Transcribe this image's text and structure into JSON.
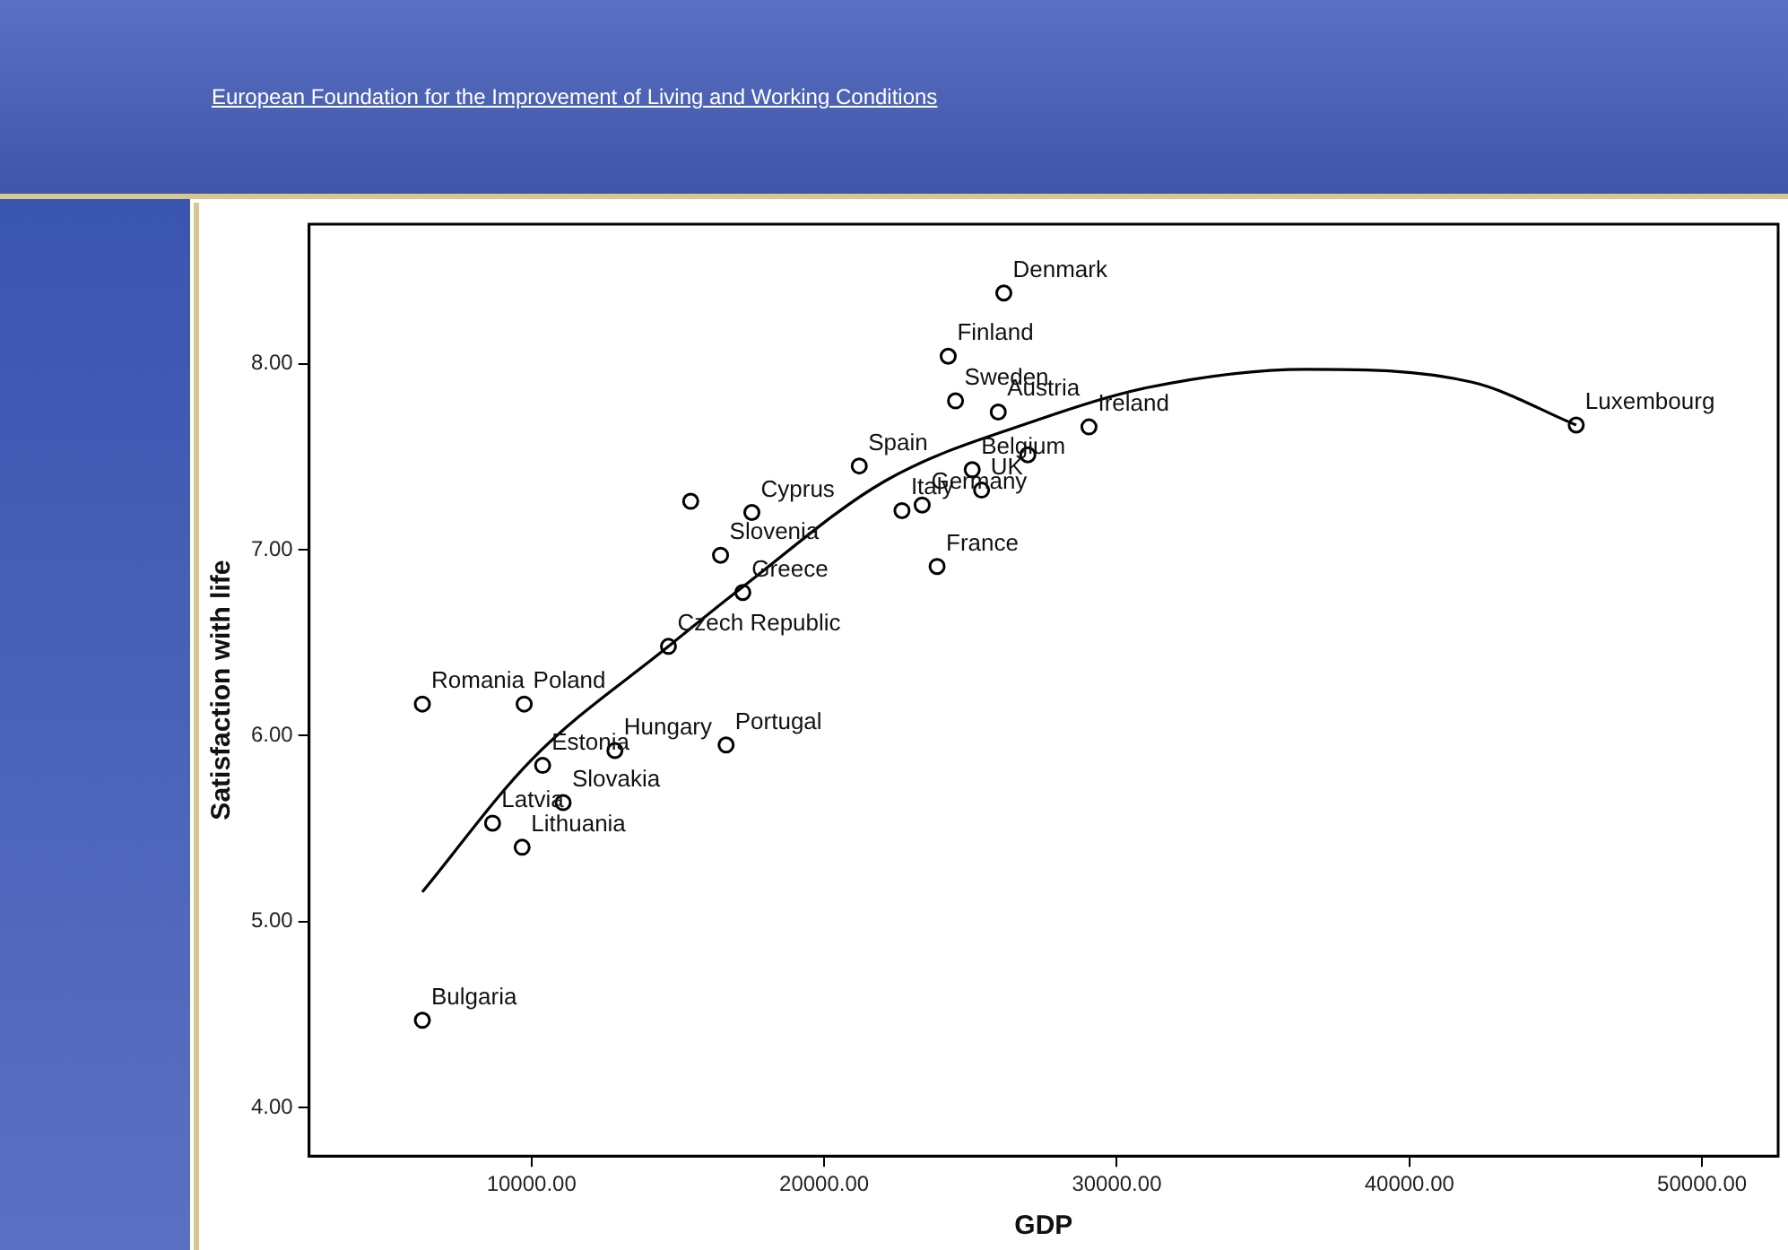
{
  "chart_data": {
    "type": "scatter",
    "xlabel": "GDP",
    "ylabel": "Satisfaction with life",
    "xlim": [
      2400,
      52600
    ],
    "ylim": [
      3.74,
      8.75
    ],
    "xticks": [
      {
        "value": 10000,
        "label": "10000.00"
      },
      {
        "value": 20000,
        "label": "20000.00"
      },
      {
        "value": 30000,
        "label": "30000.00"
      },
      {
        "value": 40000,
        "label": "40000.00"
      },
      {
        "value": 50000,
        "label": "50000.00"
      }
    ],
    "yticks": [
      {
        "value": 4,
        "label": "4.00"
      },
      {
        "value": 5,
        "label": "5.00"
      },
      {
        "value": 6,
        "label": "6.00"
      },
      {
        "value": 7,
        "label": "7.00"
      },
      {
        "value": 8,
        "label": "8.00"
      }
    ],
    "grid": false,
    "legend": false,
    "marker": "circle",
    "series": [
      {
        "color": "#000000",
        "x": [
          6270,
          9750,
          10380,
          8670,
          9680,
          11080,
          12850,
          16650,
          6270,
          14680,
          17220,
          16460,
          17530,
          15440,
          21200,
          22660,
          23350,
          25060,
          25380,
          26960,
          25950,
          29050,
          24490,
          24240,
          26140,
          23860,
          45700
        ],
        "values": [
          6.17,
          6.17,
          5.84,
          5.53,
          5.4,
          5.64,
          5.92,
          5.95,
          4.47,
          6.48,
          6.77,
          6.97,
          7.2,
          7.26,
          7.45,
          7.21,
          7.24,
          7.43,
          7.32,
          7.51,
          7.74,
          7.66,
          7.8,
          8.04,
          8.38,
          6.91,
          7.67
        ]
      },
      {
        "type": "line",
        "color": "#000000",
        "line_style": "solid",
        "marker": "none",
        "x": [
          6270,
          10000,
          14680,
          17220,
          22090,
          27340,
          31000,
          36460,
          42150,
          45700
        ],
        "values": [
          5.16,
          5.87,
          6.48,
          6.8,
          7.37,
          7.7,
          7.87,
          7.97,
          7.9,
          7.67
        ]
      }
    ],
    "annotations": [
      "European Foundation for the Improvement of Living and Working Conditions",
      {
        "text": "Romania",
        "x": 6270,
        "y": 6.17
      },
      {
        "text": "Poland",
        "x": 9750,
        "y": 6.17
      },
      {
        "text": "Estonia",
        "x": 10380,
        "y": 5.84
      },
      {
        "text": "Latvia",
        "x": 8670,
        "y": 5.53
      },
      {
        "text": "Lithuania",
        "x": 9680,
        "y": 5.4
      },
      {
        "text": "Slovakia",
        "x": 11080,
        "y": 5.64
      },
      {
        "text": "Hungary",
        "x": 12850,
        "y": 5.92
      },
      {
        "text": "Portugal",
        "x": 16650,
        "y": 5.95
      },
      {
        "text": "Bulgaria",
        "x": 6270,
        "y": 4.47
      },
      {
        "text": "Czech Republic",
        "x": 14680,
        "y": 6.48
      },
      {
        "text": "Greece",
        "x": 17220,
        "y": 6.77
      },
      {
        "text": "Slovenia",
        "x": 16460,
        "y": 6.97
      },
      {
        "text": "Cyprus",
        "x": 17530,
        "y": 7.2
      },
      {
        "text": "Spain",
        "x": 21200,
        "y": 7.45
      },
      {
        "text": "Italy",
        "x": 22660,
        "y": 7.21
      },
      {
        "text": "Germany",
        "x": 23350,
        "y": 7.24
      },
      {
        "text": "Belgium",
        "x": 25060,
        "y": 7.43
      },
      {
        "text": "UK",
        "x": 25380,
        "y": 7.32
      },
      {
        "text": "Austria",
        "x": 25950,
        "y": 7.74
      },
      {
        "text": "Ireland",
        "x": 29050,
        "y": 7.66
      },
      {
        "text": "Sweden",
        "x": 24490,
        "y": 7.8
      },
      {
        "text": "Finland",
        "x": 24240,
        "y": 8.04
      },
      {
        "text": "Denmark",
        "x": 26140,
        "y": 8.38
      },
      {
        "text": "France",
        "x": 23860,
        "y": 6.91
      },
      {
        "text": "Luxembourg",
        "x": 45700,
        "y": 7.67
      }
    ]
  }
}
